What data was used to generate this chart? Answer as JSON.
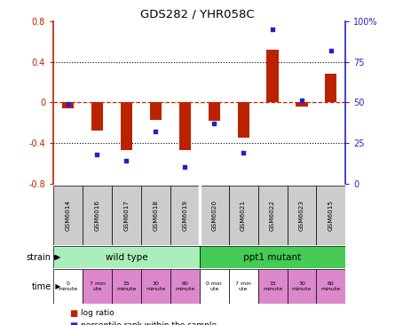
{
  "title": "GDS282 / YHR058C",
  "samples": [
    "GSM6014",
    "GSM6016",
    "GSM6017",
    "GSM6018",
    "GSM6019",
    "GSM6020",
    "GSM6021",
    "GSM6022",
    "GSM6023",
    "GSM6015"
  ],
  "log_ratio": [
    -0.06,
    -0.28,
    -0.47,
    -0.17,
    -0.47,
    -0.18,
    -0.35,
    0.52,
    -0.04,
    0.28
  ],
  "percentile": [
    49,
    18,
    14,
    32,
    10,
    37,
    19,
    95,
    51,
    82
  ],
  "ylim_left": [
    -0.8,
    0.8
  ],
  "ylim_right": [
    0,
    100
  ],
  "yticks_left": [
    -0.8,
    -0.4,
    0,
    0.4,
    0.8
  ],
  "yticks_right": [
    0,
    25,
    50,
    75,
    100
  ],
  "ytick_labels_right": [
    "0",
    "25",
    "50",
    "75",
    "100%"
  ],
  "bar_color": "#bb2200",
  "dot_color": "#2222cc",
  "dashed_color": "#cc2200",
  "sample_box_color": "#cccccc",
  "wild_type_color": "#aaeebb",
  "ppt1_color": "#44cc55",
  "time_white_color": "#ffffff",
  "time_pink_color": "#dd88cc",
  "strain_groups": [
    {
      "label": "wild type",
      "start": 0,
      "end": 5,
      "color": "#aaeebb"
    },
    {
      "label": "ppt1 mutant",
      "start": 5,
      "end": 10,
      "color": "#44cc55"
    }
  ],
  "time_labels": [
    {
      "text": "0\nminute",
      "idx": 0,
      "color": "#ffffff"
    },
    {
      "text": "7 min\nute",
      "idx": 1,
      "color": "#dd88cc"
    },
    {
      "text": "15\nminute",
      "idx": 2,
      "color": "#dd88cc"
    },
    {
      "text": "30\nminute",
      "idx": 3,
      "color": "#dd88cc"
    },
    {
      "text": "60\nminute",
      "idx": 4,
      "color": "#dd88cc"
    },
    {
      "text": "0 min\nute",
      "idx": 5,
      "color": "#ffffff"
    },
    {
      "text": "7 min\nute",
      "idx": 6,
      "color": "#ffffff"
    },
    {
      "text": "15\nminute",
      "idx": 7,
      "color": "#dd88cc"
    },
    {
      "text": "30\nminute",
      "idx": 8,
      "color": "#dd88cc"
    },
    {
      "text": "60\nminute",
      "idx": 9,
      "color": "#dd88cc"
    }
  ],
  "legend_items": [
    {
      "label": "log ratio",
      "color": "#bb2200"
    },
    {
      "label": "percentile rank within the sample",
      "color": "#2222cc"
    }
  ]
}
